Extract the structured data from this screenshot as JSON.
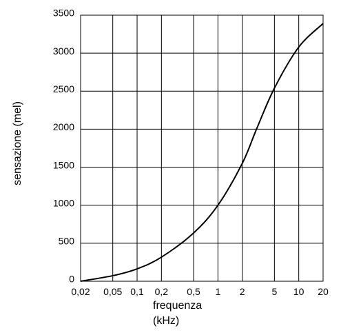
{
  "chart_data": {
    "type": "line",
    "xlabel": [
      "frequenza",
      "(kHz)"
    ],
    "ylabel": "sensazione (mel)",
    "xscale": "log",
    "grid": true,
    "xlim": [
      0.02,
      20
    ],
    "ylim": [
      0,
      3500
    ],
    "xticks": [
      {
        "value": 0.02,
        "label": "0,02"
      },
      {
        "value": 0.05,
        "label": "0,05"
      },
      {
        "value": 0.1,
        "label": "0,1"
      },
      {
        "value": 0.2,
        "label": "0,2"
      },
      {
        "value": 0.5,
        "label": "0,5"
      },
      1,
      2,
      5,
      10,
      20
    ],
    "yticks": [
      0,
      500,
      1000,
      1500,
      2000,
      2500,
      3000,
      3500
    ],
    "series": [
      {
        "color": "#000000",
        "x": [
          0.02,
          0.05,
          0.1,
          0.2,
          0.5,
          1,
          2,
          3,
          5,
          10,
          20
        ],
        "values": [
          0,
          73,
          163,
          317,
          635,
          1000,
          1550,
          2000,
          2540,
          3080,
          3390
        ]
      }
    ]
  }
}
